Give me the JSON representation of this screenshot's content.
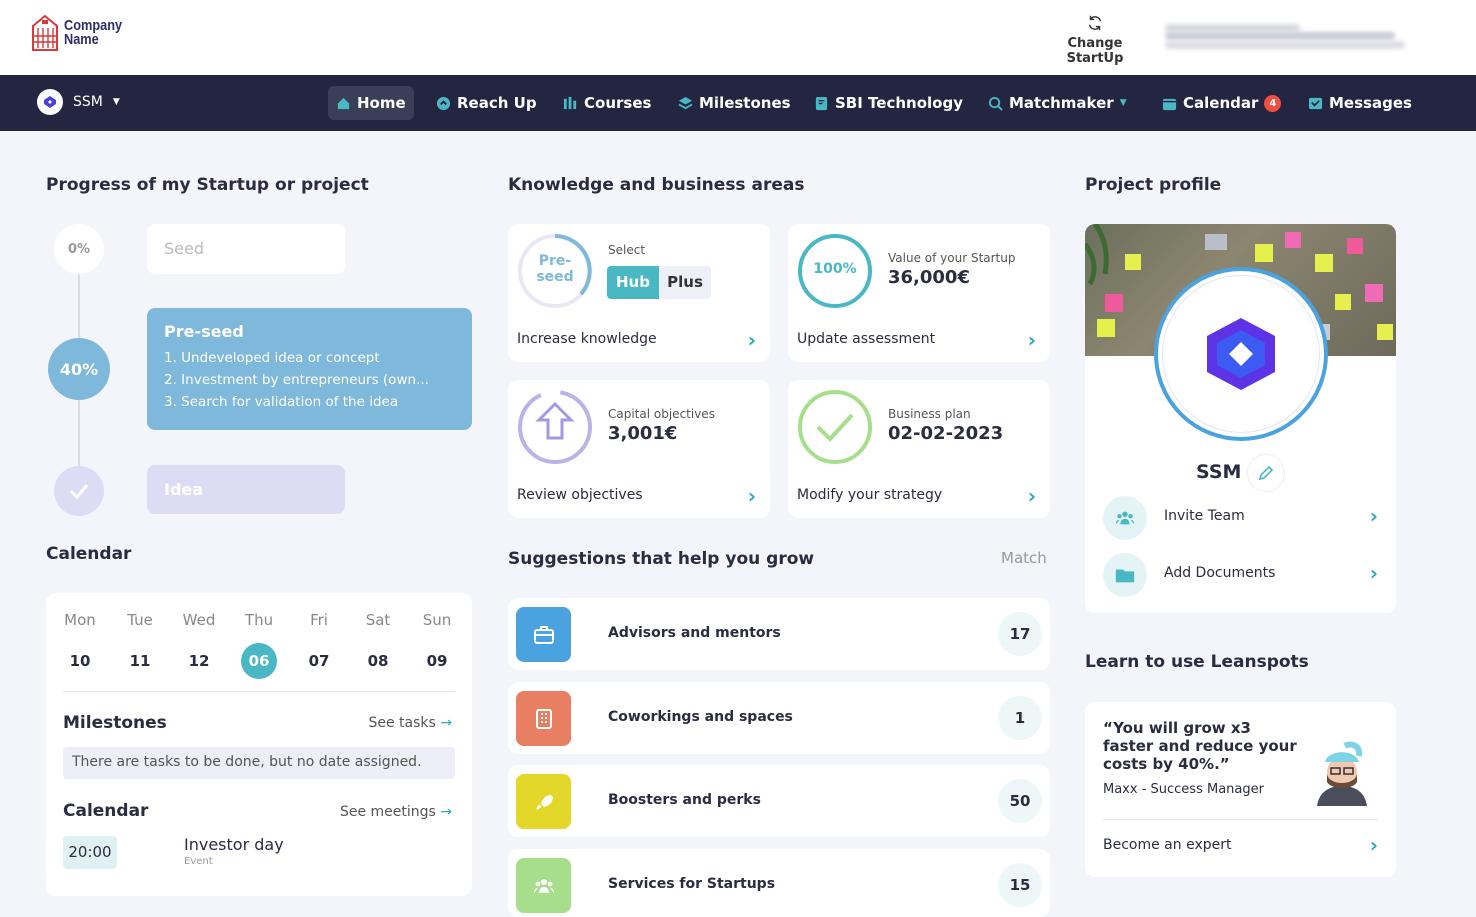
{
  "header": {
    "logo_line1": "Company",
    "logo_line2": "Name",
    "change_startup": "Change StartUp"
  },
  "nav": {
    "project": "SSM",
    "items": [
      {
        "label": "Home",
        "icon": "home-icon"
      },
      {
        "label": "Reach Up",
        "icon": "reach-up-icon"
      },
      {
        "label": "Courses",
        "icon": "courses-icon"
      },
      {
        "label": "Milestones",
        "icon": "milestones-icon"
      },
      {
        "label": "SBI Technology",
        "icon": "sbi-icon"
      },
      {
        "label": "Matchmaker",
        "icon": "search-icon"
      },
      {
        "label": "Calendar",
        "icon": "calendar-icon",
        "badge": "4"
      },
      {
        "label": "Messages",
        "icon": "messages-icon"
      }
    ]
  },
  "progress": {
    "title": "Progress of my Startup or project",
    "steps": [
      {
        "percent": "0%",
        "label": "Seed"
      },
      {
        "percent": "40%",
        "label": "Pre-seed",
        "items": [
          "1. Undeveloped idea or concept",
          "2. Investment by entrepreneurs (own...",
          "3. Search for validation of the idea"
        ]
      },
      {
        "label": "Idea"
      }
    ]
  },
  "calendar": {
    "title": "Calendar",
    "days": [
      {
        "name": "Mon",
        "date": "10"
      },
      {
        "name": "Tue",
        "date": "11"
      },
      {
        "name": "Wed",
        "date": "12"
      },
      {
        "name": "Thu",
        "date": "06",
        "today": true
      },
      {
        "name": "Fri",
        "date": "07"
      },
      {
        "name": "Sat",
        "date": "08"
      },
      {
        "name": "Sun",
        "date": "09"
      }
    ],
    "milestones_title": "Milestones",
    "see_tasks": "See tasks",
    "milestones_note": "There are tasks to be done, but no date assigned.",
    "calendar_title": "Calendar",
    "see_meetings": "See meetings",
    "event_time": "20:00",
    "event_title": "Investor day",
    "event_type": "Event"
  },
  "knowledge": {
    "title": "Knowledge and business areas",
    "stage_line1": "Pre-",
    "stage_line2": "seed",
    "select_label": "Select",
    "option_hub": "Hub",
    "option_plus": "Plus",
    "increase": "Increase knowledge",
    "value_percent": "100%",
    "value_label": "Value of your Startup",
    "value_amount": "36,000€",
    "update": "Update assessment",
    "capital_label": "Capital objectives",
    "capital_amount": "3,001€",
    "review": "Review objectives",
    "plan_label": "Business plan",
    "plan_date": "02-02-2023",
    "modify": "Modify your strategy"
  },
  "suggestions": {
    "title": "Suggestions that help you grow",
    "match": "Match",
    "items": [
      {
        "label": "Advisors and mentors",
        "count": "17",
        "color": "#4aa3df"
      },
      {
        "label": "Coworkings and spaces",
        "count": "1",
        "color": "#e87e62"
      },
      {
        "label": "Boosters and perks",
        "count": "50",
        "color": "#e3d829"
      },
      {
        "label": "Services for Startups",
        "count": "15",
        "color": "#a7de8c"
      }
    ]
  },
  "profile": {
    "title": "Project profile",
    "name": "SSM",
    "invite": "Invite Team",
    "documents": "Add Documents"
  },
  "learn": {
    "title": "Learn to use Leanspots",
    "quote": "“You will grow x3 faster and reduce your costs by 40%.”",
    "author": "Maxx - Success Manager",
    "become": "Become an expert"
  }
}
